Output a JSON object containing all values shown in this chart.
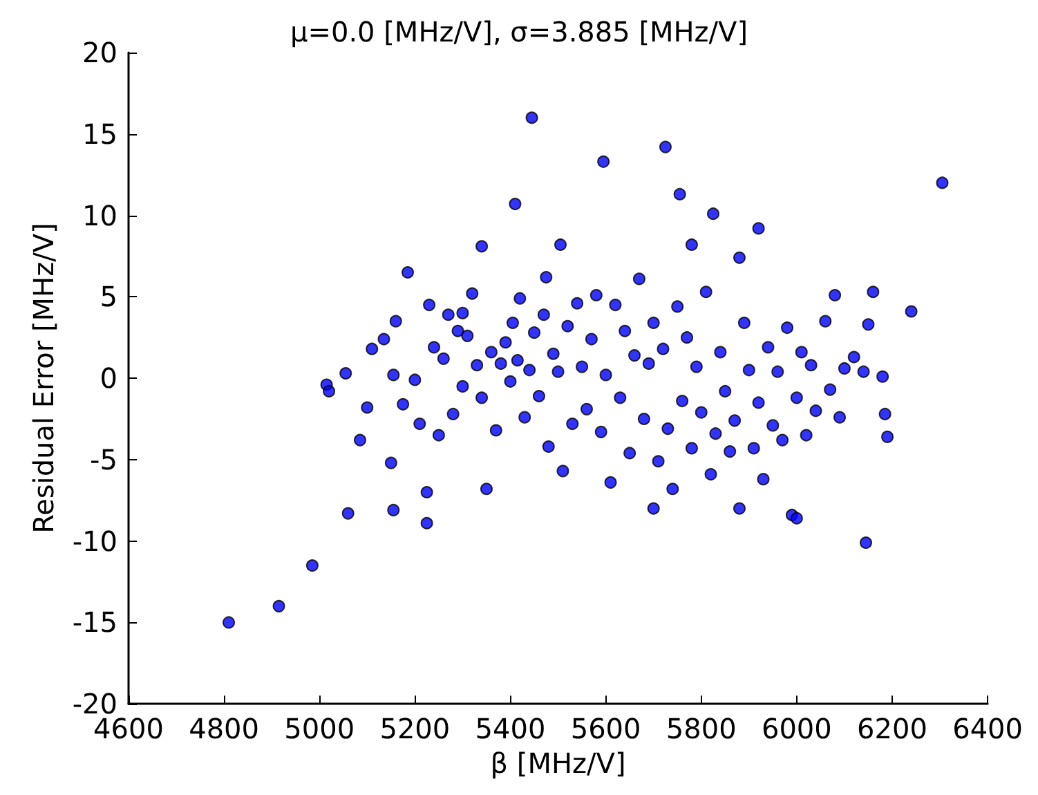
{
  "chart_data": {
    "type": "scatter",
    "title": "μ=0.0 [MHz/V], σ=3.885 [MHz/V]",
    "xlabel": "β [MHz/V]",
    "ylabel": "Residual Error [MHz/V]",
    "xlim": [
      4600,
      6400
    ],
    "xticks": [
      4600,
      4800,
      5000,
      5200,
      5400,
      5600,
      5800,
      6000,
      6200,
      6400
    ],
    "ylim": [
      -20,
      20
    ],
    "yticks": [
      -20,
      -15,
      -10,
      -5,
      0,
      5,
      10,
      15,
      20
    ],
    "grid": false,
    "marker": "circle",
    "series": [
      {
        "color": "#0000ff",
        "x": [
          4810,
          4915,
          4985,
          5015,
          5020,
          5055,
          5060,
          5085,
          5100,
          5110,
          5135,
          5150,
          5155,
          5155,
          5160,
          5175,
          5185,
          5200,
          5210,
          5225,
          5225,
          5230,
          5240,
          5250,
          5260,
          5270,
          5280,
          5290,
          5300,
          5300,
          5310,
          5320,
          5330,
          5340,
          5340,
          5350,
          5360,
          5370,
          5380,
          5390,
          5400,
          5405,
          5410,
          5415,
          5420,
          5430,
          5440,
          5445,
          5450,
          5460,
          5470,
          5475,
          5480,
          5490,
          5500,
          5505,
          5510,
          5520,
          5530,
          5540,
          5550,
          5560,
          5570,
          5580,
          5590,
          5595,
          5600,
          5610,
          5620,
          5630,
          5640,
          5650,
          5660,
          5670,
          5680,
          5690,
          5700,
          5700,
          5710,
          5720,
          5725,
          5730,
          5740,
          5750,
          5755,
          5760,
          5770,
          5780,
          5780,
          5790,
          5800,
          5810,
          5820,
          5825,
          5830,
          5840,
          5850,
          5860,
          5870,
          5880,
          5880,
          5890,
          5900,
          5910,
          5920,
          5920,
          5930,
          5940,
          5950,
          5960,
          5970,
          5980,
          5990,
          6000,
          6000,
          6010,
          6020,
          6030,
          6040,
          6060,
          6070,
          6080,
          6090,
          6100,
          6120,
          6140,
          6145,
          6150,
          6160,
          6180,
          6185,
          6190,
          6240,
          6305
        ],
        "values": [
          -15,
          -14,
          -11.5,
          -0.4,
          -0.8,
          0.3,
          -8.3,
          -3.8,
          -1.8,
          1.8,
          2.4,
          -5.2,
          -8.1,
          0.2,
          3.5,
          -1.6,
          6.5,
          -0.1,
          -2.8,
          -8.9,
          -7,
          4.5,
          1.9,
          -3.5,
          1.2,
          3.9,
          -2.2,
          2.9,
          -0.5,
          4,
          2.6,
          5.2,
          0.8,
          8.1,
          -1.2,
          -6.8,
          1.6,
          -3.2,
          0.9,
          2.2,
          -0.2,
          3.4,
          10.7,
          1.1,
          4.9,
          -2.4,
          0.5,
          16,
          2.8,
          -1.1,
          3.9,
          6.2,
          -4.2,
          1.5,
          0.4,
          8.2,
          -5.7,
          3.2,
          -2.8,
          4.6,
          0.7,
          -1.9,
          2.4,
          5.1,
          -3.3,
          13.3,
          0.2,
          -6.4,
          4.5,
          -1.2,
          2.9,
          -4.6,
          1.4,
          6.1,
          -2.5,
          0.9,
          3.4,
          -8,
          -5.1,
          1.8,
          14.2,
          -3.1,
          -6.8,
          4.4,
          11.3,
          -1.4,
          2.5,
          8.2,
          -4.3,
          0.7,
          -2.1,
          5.3,
          -5.9,
          10.1,
          -3.4,
          1.6,
          -0.8,
          -4.5,
          -2.6,
          -8,
          7.4,
          3.4,
          0.5,
          -4.3,
          9.2,
          -1.5,
          -6.2,
          1.9,
          -2.9,
          0.4,
          -3.8,
          3.1,
          -8.4,
          -8.6,
          -1.2,
          1.6,
          -3.5,
          0.8,
          -2,
          3.5,
          -0.7,
          5.1,
          -2.4,
          0.6,
          1.3,
          0.4,
          -10.1,
          3.3,
          5.3,
          0.1,
          -2.2,
          -3.6,
          4.1,
          12
        ]
      }
    ]
  }
}
